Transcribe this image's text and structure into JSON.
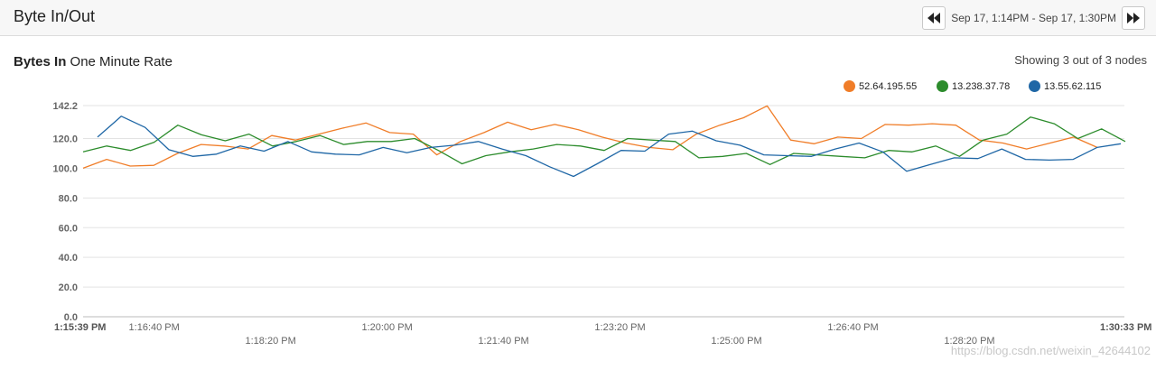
{
  "header": {
    "title": "Byte In/Out",
    "range_label": "Sep 17, 1:14PM - Sep 17, 1:30PM"
  },
  "panel": {
    "title_bold": "Bytes In",
    "title_rest": "One Minute Rate",
    "showing": "Showing 3 out of 3 nodes"
  },
  "watermark": "https://blog.csdn.net/weixin_42644102",
  "chart_data": {
    "type": "line",
    "title": "Bytes In One Minute Rate",
    "ylim": [
      0,
      142.2
    ],
    "y_ticks": [
      "0.0",
      "20.0",
      "40.0",
      "60.0",
      "80.0",
      "100.0",
      "120.0",
      "142.2"
    ],
    "x_start_label": "1:15:39 PM",
    "x_end_label": "1:30:33 PM",
    "x_labels_row1": [
      "1:16:40 PM",
      "1:20:00 PM",
      "1:23:20 PM",
      "1:26:40 PM"
    ],
    "x_labels_row2": [
      "1:18:20 PM",
      "1:21:40 PM",
      "1:25:00 PM",
      "1:28:20 PM"
    ],
    "legend": [
      "52.64.195.55",
      "13.238.37.78",
      "13.55.62.115"
    ],
    "series": [
      {
        "name": "52.64.195.55",
        "color": "#f07d28",
        "values": [
          100,
          106,
          101.5,
          102,
          110,
          116,
          115,
          113,
          122,
          119,
          123,
          127,
          130.5,
          124,
          123,
          109,
          118,
          124,
          131,
          126,
          129.5,
          126,
          121,
          117,
          114,
          112.5,
          123,
          129,
          134,
          142,
          119,
          116.5,
          121,
          120,
          129.5,
          129,
          130,
          129,
          119,
          117,
          113,
          117,
          121,
          114
        ]
      },
      {
        "name": "13.238.37.78",
        "color": "#2c8c2c",
        "values": [
          111,
          115,
          112,
          117.5,
          129,
          122.5,
          118.5,
          123,
          115,
          118,
          122,
          116,
          118,
          118,
          120,
          112,
          103,
          108.5,
          111,
          113,
          116,
          115,
          112,
          120,
          119,
          118,
          107,
          108,
          110,
          102.5,
          110,
          109,
          108,
          107,
          112,
          111,
          115,
          108,
          119,
          123,
          134.5,
          130,
          120,
          126.5,
          118
        ]
      },
      {
        "name": "13.55.62.115",
        "color": "#1f67a6",
        "values": [
          121,
          135,
          127.5,
          112.5,
          108,
          109.5,
          115,
          111.5,
          118,
          111,
          109.5,
          109,
          114,
          110.5,
          114,
          115.5,
          118,
          113,
          108.5,
          101,
          94.5,
          103,
          112,
          111.5,
          123,
          125,
          118.5,
          115.5,
          109,
          108.5,
          108,
          113,
          117,
          111,
          98,
          102.5,
          107,
          106.5,
          113,
          106,
          105.5,
          106,
          114,
          116.5
        ]
      }
    ]
  }
}
